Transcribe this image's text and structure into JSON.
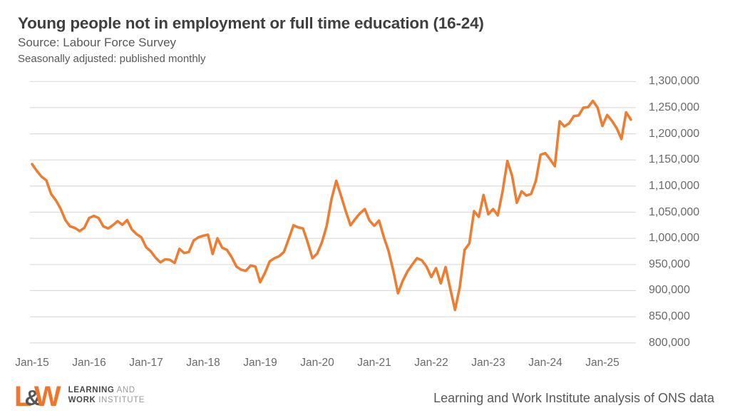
{
  "header": {
    "title": "Young people not in employment or full time education (16-24)",
    "source": "Source: Labour Force Survey",
    "note": "Seasonally adjusted: published monthly"
  },
  "footer": {
    "logo": {
      "letter_l": "L",
      "ampersand": "&",
      "letter_w": "W",
      "line1_bold": "LEARNING",
      "line1_rest": " AND",
      "line2_bold": "WORK",
      "line2_rest": " INSTITUTE"
    },
    "attribution": "Learning and Work Institute analysis of ONS data"
  },
  "colors": {
    "line": "#ED7D31",
    "grid": "#DBDBDB",
    "title_text": "#404040",
    "body_text": "#595959",
    "axis_text": "#6A6A6A",
    "logo_orange": "#F0762B",
    "logo_gray": "#54565A"
  },
  "chart_data": {
    "type": "line",
    "title": "Young people not in employment or full time education (16-24)",
    "subtitle": "Source: Labour Force Survey — Seasonally adjusted: published monthly",
    "series_name": "Young people not in employment or full time education (16-24)",
    "frequency": "monthly",
    "x_start": "Jan-2015",
    "x_end": "Jul-2025",
    "xlabel": "",
    "ylabel": "",
    "ylim": [
      800000,
      1300000
    ],
    "y_tick_step": 50000,
    "grid": "horizontal",
    "legend": "none",
    "y_tick_labels": [
      "1,300,000",
      "1,250,000",
      "1,200,000",
      "1,150,000",
      "1,100,000",
      "1,050,000",
      "1,000,000",
      "950,000",
      "900,000",
      "850,000",
      "800,000"
    ],
    "x_tick_labels": [
      "Jan-15",
      "Jan-16",
      "Jan-17",
      "Jan-18",
      "Jan-19",
      "Jan-20",
      "Jan-21",
      "Jan-22",
      "Jan-23",
      "Jan-24",
      "Jan-25"
    ],
    "months": [
      "Jan-15",
      "Feb-15",
      "Mar-15",
      "Apr-15",
      "May-15",
      "Jun-15",
      "Jul-15",
      "Aug-15",
      "Sep-15",
      "Oct-15",
      "Nov-15",
      "Dec-15",
      "Jan-16",
      "Feb-16",
      "Mar-16",
      "Apr-16",
      "May-16",
      "Jun-16",
      "Jul-16",
      "Aug-16",
      "Sep-16",
      "Oct-16",
      "Nov-16",
      "Dec-16",
      "Jan-17",
      "Feb-17",
      "Mar-17",
      "Apr-17",
      "May-17",
      "Jun-17",
      "Jul-17",
      "Aug-17",
      "Sep-17",
      "Oct-17",
      "Nov-17",
      "Dec-17",
      "Jan-18",
      "Feb-18",
      "Mar-18",
      "Apr-18",
      "May-18",
      "Jun-18",
      "Jul-18",
      "Aug-18",
      "Sep-18",
      "Oct-18",
      "Nov-18",
      "Dec-18",
      "Jan-19",
      "Feb-19",
      "Mar-19",
      "Apr-19",
      "May-19",
      "Jun-19",
      "Jul-19",
      "Aug-19",
      "Sep-19",
      "Oct-19",
      "Nov-19",
      "Dec-19",
      "Jan-20",
      "Feb-20",
      "Mar-20",
      "Apr-20",
      "May-20",
      "Jun-20",
      "Jul-20",
      "Aug-20",
      "Sep-20",
      "Oct-20",
      "Nov-20",
      "Dec-20",
      "Jan-21",
      "Feb-21",
      "Mar-21",
      "Apr-21",
      "May-21",
      "Jun-21",
      "Jul-21",
      "Aug-21",
      "Sep-21",
      "Oct-21",
      "Nov-21",
      "Dec-21",
      "Jan-22",
      "Feb-22",
      "Mar-22",
      "Apr-22",
      "May-22",
      "Jun-22",
      "Jul-22",
      "Aug-22",
      "Sep-22",
      "Oct-22",
      "Nov-22",
      "Dec-22",
      "Jan-23",
      "Feb-23",
      "Mar-23",
      "Apr-23",
      "May-23",
      "Jun-23",
      "Jul-23",
      "Aug-23",
      "Sep-23",
      "Oct-23",
      "Nov-23",
      "Dec-23",
      "Jan-24",
      "Feb-24",
      "Mar-24",
      "Apr-24",
      "May-24",
      "Jun-24",
      "Jul-24",
      "Aug-24",
      "Sep-24",
      "Oct-24",
      "Nov-24",
      "Dec-24",
      "Jan-25",
      "Feb-25",
      "Mar-25",
      "Apr-25",
      "May-25",
      "Jun-25",
      "Jul-25"
    ],
    "values": [
      1142000,
      1129000,
      1118000,
      1111000,
      1085000,
      1073000,
      1057000,
      1035000,
      1023000,
      1020000,
      1014000,
      1020000,
      1039000,
      1043000,
      1039000,
      1023000,
      1019000,
      1025000,
      1033000,
      1026000,
      1035000,
      1017000,
      1008000,
      1002000,
      983000,
      975000,
      963000,
      954000,
      960000,
      959000,
      953000,
      980000,
      972000,
      974000,
      996000,
      1002000,
      1005000,
      1007000,
      970000,
      1000000,
      982000,
      978000,
      964000,
      946000,
      940000,
      938000,
      948000,
      946000,
      916000,
      934000,
      956000,
      962000,
      966000,
      974000,
      999000,
      1025000,
      1021000,
      1019000,
      992000,
      962000,
      971000,
      993000,
      1024000,
      1075000,
      1110000,
      1082000,
      1052000,
      1025000,
      1037000,
      1048000,
      1056000,
      1034000,
      1024000,
      1034000,
      1003000,
      976000,
      938000,
      895000,
      919000,
      937000,
      950000,
      962000,
      958000,
      946000,
      926000,
      943000,
      914000,
      945000,
      903000,
      863000,
      907000,
      978000,
      990000,
      1052000,
      1041000,
      1083000,
      1046000,
      1056000,
      1044000,
      1090000,
      1148000,
      1120000,
      1068000,
      1090000,
      1082000,
      1085000,
      1110000,
      1160000,
      1163000,
      1151000,
      1138000,
      1224000,
      1214000,
      1220000,
      1234000,
      1235000,
      1250000,
      1251000,
      1263000,
      1250000,
      1215000,
      1236000,
      1225000,
      1211000,
      1190000,
      1241000,
      1227000
    ]
  }
}
